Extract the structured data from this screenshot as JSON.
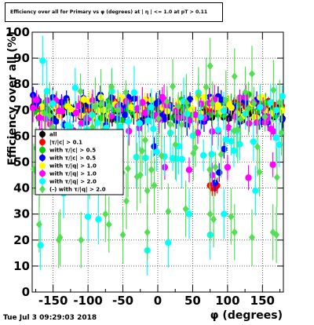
{
  "title": "Efficiency over all for Primary vs φ (degrees) at | η | <= 1.0 at pT > 0.11",
  "timestamp": "Tue Jul  3 09:29:03 2018",
  "chart_data": {
    "type": "scatter",
    "xlabel": "φ (degrees)",
    "ylabel": "Efficiency over all (%)",
    "xlim": [
      -180,
      180
    ],
    "ylim": [
      0,
      100
    ],
    "xticks": [
      -150,
      -100,
      -50,
      0,
      50,
      100,
      150
    ],
    "yticks": [
      0,
      10,
      20,
      30,
      40,
      50,
      60,
      70,
      80,
      90,
      100
    ],
    "grid": true,
    "legend_position": "left",
    "series": [
      {
        "name": "all",
        "color": "#000000",
        "marker": "circle",
        "base": 69,
        "spread": 3,
        "err": 2.5,
        "seed": 11,
        "values_note": "",
        "points": [
          [
            -80,
            71
          ],
          [
            -20,
            70
          ],
          [
            35,
            72
          ],
          [
            120,
            68
          ]
        ]
      },
      {
        "name": "|τ/|c| > 0.1",
        "color": "#ff0000",
        "marker": "circle",
        "base": 71,
        "spread": 3,
        "err": 2.5,
        "seed": 23,
        "points": [
          [
            75,
            41
          ],
          [
            78,
            40
          ],
          [
            82,
            40
          ],
          [
            85,
            41
          ],
          [
            -170,
            72
          ]
        ]
      },
      {
        "name": "with τ/|c| > 0.5",
        "color": "#00cc00",
        "marker": "circle",
        "base": 70,
        "spread": 4,
        "err": 3,
        "seed": 37,
        "points": [
          [
            130,
            76
          ]
        ]
      },
      {
        "name": "with τ/|c| > 0.5",
        "color": "#0000ff",
        "marker": "circle",
        "base": 70,
        "spread": 6,
        "err": 3,
        "seed": 41,
        "points": [
          [
            -5,
            56
          ],
          [
            82,
            42
          ],
          [
            88,
            46
          ],
          [
            95,
            55
          ]
        ]
      },
      {
        "name": "with τ/|q| > 1.0",
        "color": "#ffff00",
        "marker": "circle",
        "base": 71,
        "spread": 4,
        "err": 3,
        "seed": 53,
        "points": []
      },
      {
        "name": "with τ/|q| > 1.0",
        "color": "#ff00ff",
        "marker": "circle",
        "base": 68,
        "spread": 7,
        "err": 4,
        "seed": 61,
        "points": [
          [
            -172,
            46
          ],
          [
            10,
            48
          ],
          [
            45,
            47
          ],
          [
            78,
            45
          ],
          [
            100,
            48
          ],
          [
            130,
            44
          ],
          [
            165,
            49
          ]
        ]
      },
      {
        "name": "with τ/|q| > 2.0",
        "color": "#00ffff",
        "marker": "circle",
        "base": 65,
        "spread": 14,
        "err": 8,
        "seed": 71,
        "points": [
          [
            -165,
            89
          ],
          [
            -168,
            18
          ],
          [
            -135,
            38
          ],
          [
            -100,
            29
          ],
          [
            -85,
            28
          ],
          [
            -15,
            16
          ],
          [
            15,
            19
          ],
          [
            45,
            30
          ],
          [
            75,
            22
          ],
          [
            95,
            30
          ],
          [
            140,
            39
          ],
          [
            170,
            70
          ]
        ]
      },
      {
        "name": "(-) with τ/|q| > 2.0",
        "color": "#55dd55",
        "marker": "diamond",
        "base": 62,
        "spread": 18,
        "err": 9,
        "seed": 83,
        "points": [
          [
            -170,
            26
          ],
          [
            -142,
            20
          ],
          [
            -140,
            21
          ],
          [
            -110,
            20
          ],
          [
            -75,
            30
          ],
          [
            -70,
            26
          ],
          [
            -50,
            22
          ],
          [
            -45,
            35
          ],
          [
            -15,
            23
          ],
          [
            -15,
            39
          ],
          [
            -5,
            41
          ],
          [
            15,
            31
          ],
          [
            40,
            32
          ],
          [
            75,
            30
          ],
          [
            80,
            28
          ],
          [
            105,
            29
          ],
          [
            110,
            23
          ],
          [
            135,
            21
          ],
          [
            165,
            23
          ],
          [
            170,
            22
          ],
          [
            75,
            87
          ],
          [
            110,
            83
          ],
          [
            135,
            84
          ],
          [
            -25,
            45
          ]
        ]
      }
    ]
  }
}
